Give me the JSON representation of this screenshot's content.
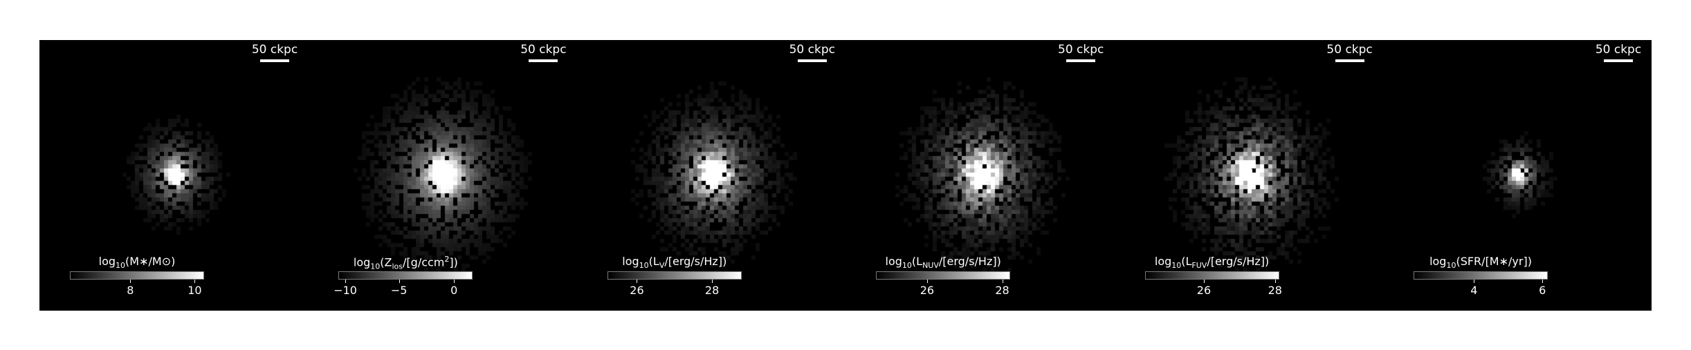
{
  "scale_bar": {
    "label": "50 ckpc"
  },
  "panels": [
    {
      "id": "stellar-mass",
      "label_pre": "log",
      "label_sub": "10",
      "label_post": "(M∗/M⊙)",
      "ticks": [
        {
          "label": "8",
          "pos": 0.45
        },
        {
          "label": "10",
          "pos": 0.93
        }
      ],
      "spread": 0.65,
      "noise": 0.25,
      "seed": 3
    },
    {
      "id": "metallicity",
      "label_pre": "log",
      "label_sub": "10",
      "label_post": "(Z",
      "label_sub2": "los",
      "label_post2": "/[g/ccm",
      "label_sup": "2",
      "label_post3": "])",
      "ticks": [
        {
          "label": "−10",
          "pos": 0.05
        },
        {
          "label": "−5",
          "pos": 0.45
        },
        {
          "label": "0",
          "pos": 0.86
        }
      ],
      "spread": 1.1,
      "noise": 0.15,
      "seed": 7
    },
    {
      "id": "v-band",
      "label_pre": "log",
      "label_sub": "10",
      "label_post": "(L",
      "label_sub2": "V",
      "label_post2": "/[erg/s/Hz])",
      "ticks": [
        {
          "label": "26",
          "pos": 0.22
        },
        {
          "label": "28",
          "pos": 0.78
        }
      ],
      "spread": 1.0,
      "noise": 0.35,
      "seed": 11
    },
    {
      "id": "nuv",
      "label_pre": "log",
      "label_sub": "10",
      "label_post": "(L",
      "label_sub2": "NUV",
      "label_post2": "/[erg/s/Hz])",
      "ticks": [
        {
          "label": "26",
          "pos": 0.38
        },
        {
          "label": "28",
          "pos": 0.94
        }
      ],
      "spread": 1.05,
      "noise": 0.45,
      "seed": 13
    },
    {
      "id": "fuv",
      "label_pre": "log",
      "label_sub": "10",
      "label_post": "(L",
      "label_sub2": "FUV",
      "label_post2": "/[erg/s/Hz])",
      "ticks": [
        {
          "label": "26",
          "pos": 0.44
        },
        {
          "label": "28",
          "pos": 0.97
        }
      ],
      "spread": 1.05,
      "noise": 0.5,
      "seed": 17
    },
    {
      "id": "sfr",
      "label_pre": "log",
      "label_sub": "10",
      "label_post": "(SFR/[M∗/yr])",
      "ticks": [
        {
          "label": "4",
          "pos": 0.45
        },
        {
          "label": "6",
          "pos": 0.96
        }
      ],
      "spread": 0.45,
      "noise": 0.3,
      "seed": 19
    }
  ]
}
